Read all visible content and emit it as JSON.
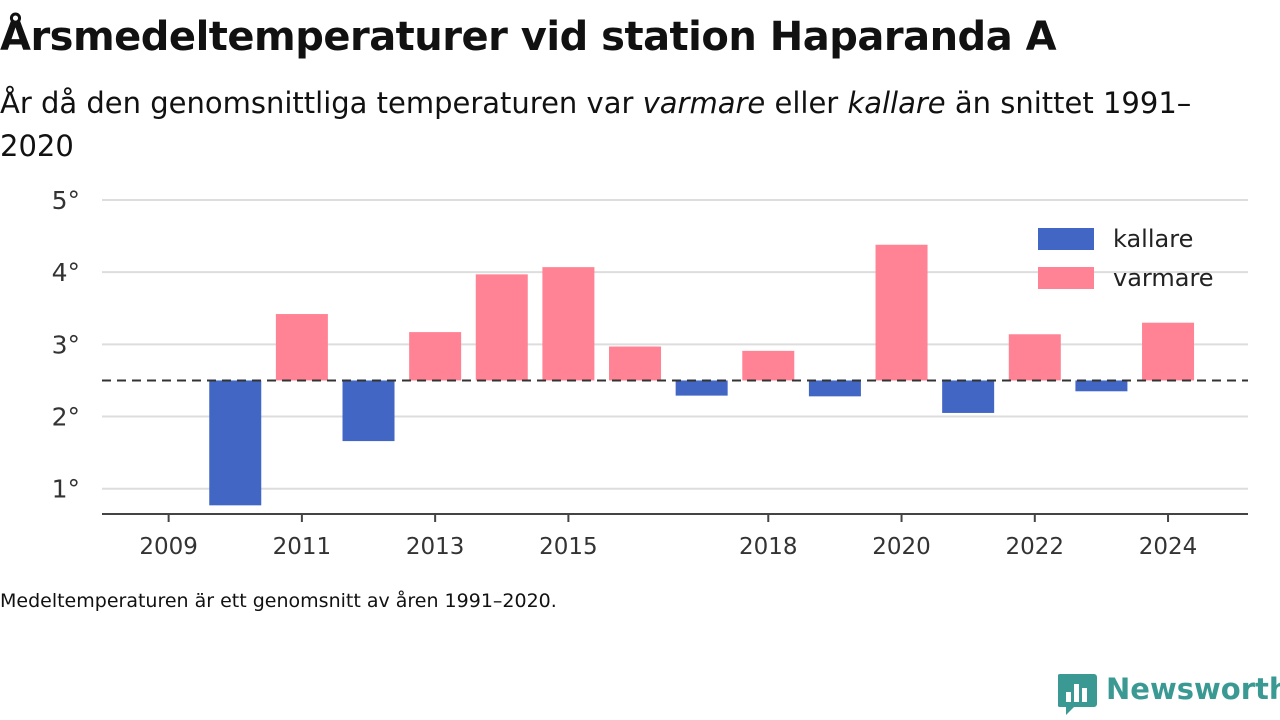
{
  "header": {
    "title": "Årsmedeltemperaturer vid station Haparanda A",
    "subtitle_pre": "År då den genomsnittliga temperaturen var ",
    "subtitle_warm": "varmare",
    "subtitle_mid": " eller ",
    "subtitle_cold": "kallare",
    "subtitle_post": " än snittet 1991–2020"
  },
  "footnote": "Medeltemperaturen är ett genomsnitt av åren 1991–2020.",
  "brand": {
    "name": "Newsworthy",
    "color": "#3a9a93",
    "icon": "bar-chart-speech-bubble-icon"
  },
  "colors": {
    "kallare": "#4166c3",
    "varmare": "#ff8394",
    "grid": "#dddddd",
    "axis": "#444444"
  },
  "chart_data": {
    "type": "bar",
    "baseline": 2.5,
    "baseline_style": "dashed",
    "x": [
      2010,
      2011,
      2012,
      2013,
      2014,
      2015,
      2016,
      2017,
      2018,
      2019,
      2020,
      2021,
      2022,
      2023,
      2024
    ],
    "values": [
      0.77,
      3.42,
      1.66,
      3.17,
      3.97,
      4.07,
      2.97,
      2.29,
      2.91,
      2.28,
      4.38,
      2.05,
      3.14,
      2.35,
      3.3
    ],
    "xticks": [
      2009,
      2011,
      2013,
      2015,
      2018,
      2020,
      2022,
      2024
    ],
    "xtick_labels": [
      "2009",
      "2011",
      "2013",
      "2015",
      "2018",
      "2020",
      "2022",
      "2024"
    ],
    "xlim": [
      2008,
      2025.2
    ],
    "yticks": [
      1,
      2,
      3,
      4,
      5
    ],
    "ytick_labels": [
      "1°",
      "2°",
      "3°",
      "4°",
      "5°"
    ],
    "ylim": [
      0.65,
      5
    ],
    "grid": true,
    "legend_position": "top-right",
    "legend": [
      {
        "key": "kallare",
        "label": "kallare"
      },
      {
        "key": "varmare",
        "label": "varmare"
      }
    ],
    "xlabel": "",
    "ylabel": ""
  }
}
